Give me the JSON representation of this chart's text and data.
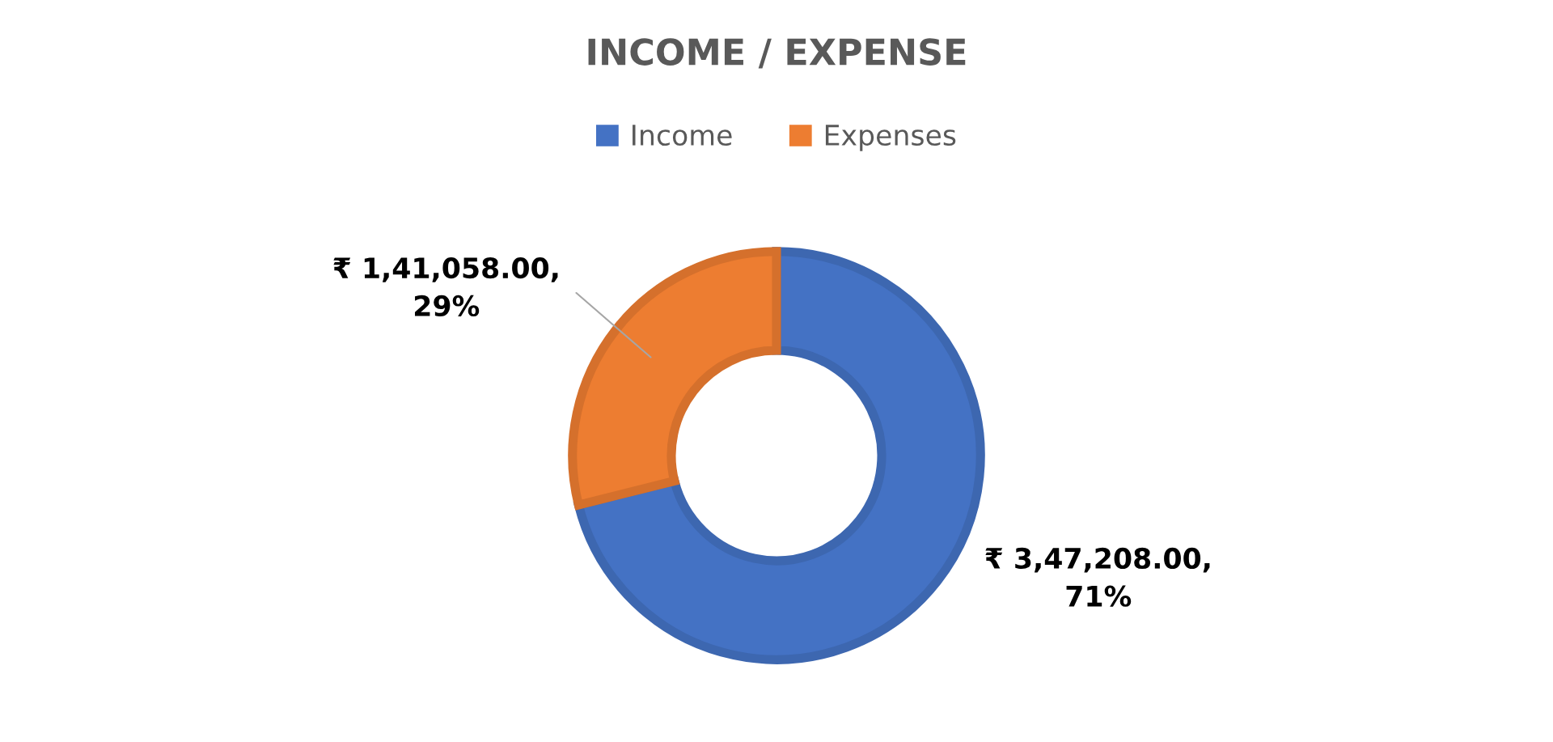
{
  "chart_data": {
    "type": "donut",
    "title": "INCOME / EXPENSE",
    "categories": [
      "Income",
      "Expenses"
    ],
    "values": [
      347208,
      141058
    ],
    "colors": [
      "#4472c4",
      "#ed7d31"
    ],
    "value_labels": [
      "₹ 3,47,208.00,\n71%",
      "₹ 1,41,058.00,\n29%"
    ],
    "legend": "top"
  }
}
